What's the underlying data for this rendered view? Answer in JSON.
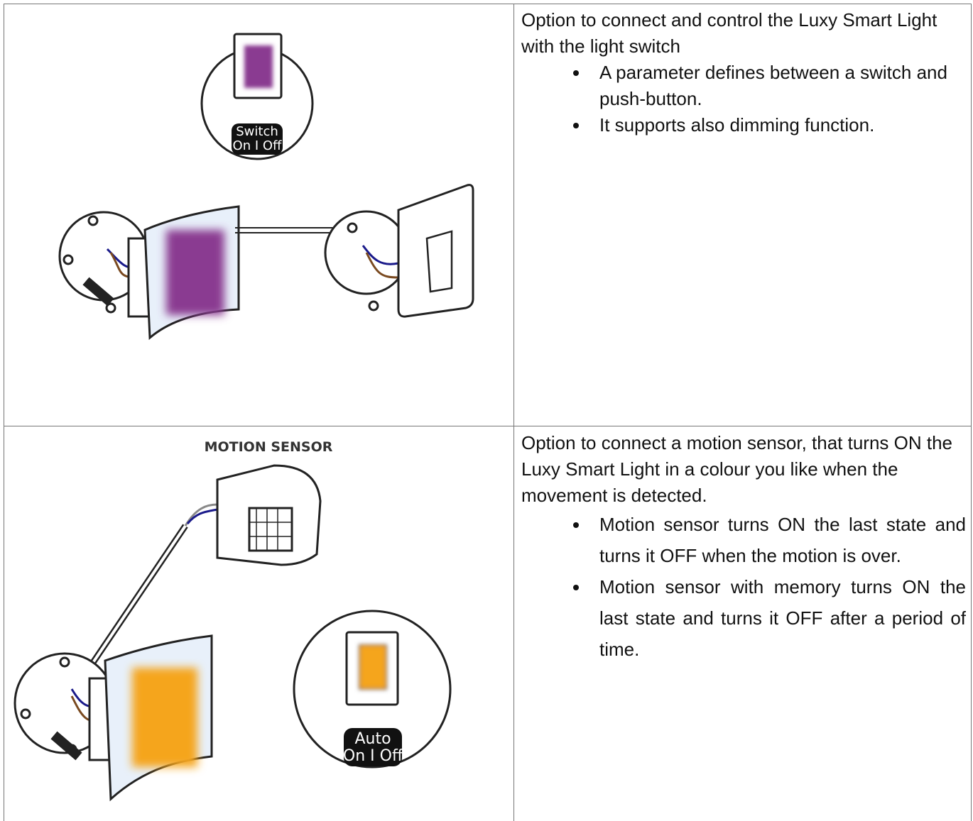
{
  "table": {
    "rows": [
      {
        "illustration": {
          "badge": [
            "Switch",
            "On I Off"
          ]
        },
        "description": {
          "intro": "Option to connect and control the Luxy Smart Light with the light switch",
          "bullets": [
            "A parameter defines between a switch and push-button.",
            "It supports also dimming function."
          ]
        }
      },
      {
        "illustration": {
          "caption": "MOTION SENSOR",
          "badge": [
            "Auto",
            "On I Off"
          ]
        },
        "description": {
          "intro": "Option to connect a motion sensor, that turns ON the Luxy Smart Light in a colour you like when the movement is detected.",
          "bullets": [
            "Motion sensor turns ON the last state and turns it OFF when the motion is over.",
            "Motion sensor with memory turns ON the last state and turns it OFF after a period of time."
          ]
        }
      }
    ]
  }
}
